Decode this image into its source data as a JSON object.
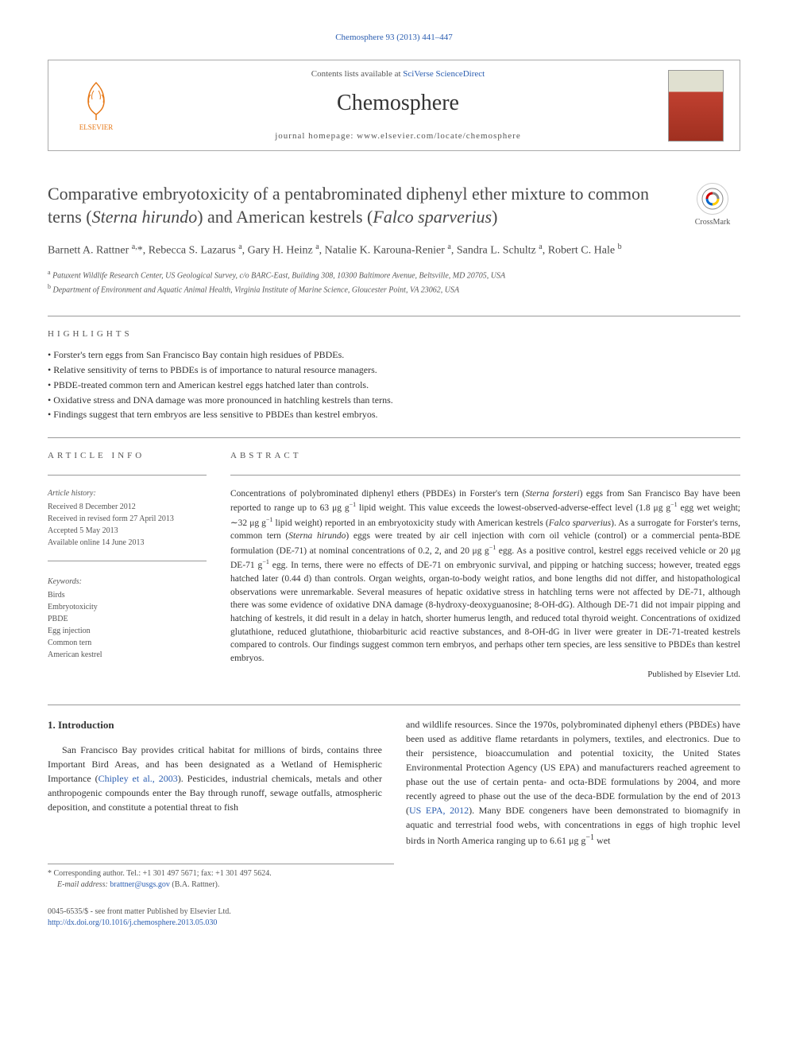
{
  "journal_ref": "Chemosphere 93 (2013) 441–447",
  "header": {
    "contents_line_prefix": "Contents lists available at ",
    "contents_link": "SciVerse ScienceDirect",
    "journal_name": "Chemosphere",
    "homepage_prefix": "journal homepage: ",
    "homepage": "www.elsevier.com/locate/chemosphere",
    "publisher": "ELSEVIER"
  },
  "crossmark": "CrossMark",
  "title_html": "Comparative embryotoxicity of a pentabrominated diphenyl ether mixture to common terns (<em>Sterna hirundo</em>) and American kestrels (<em>Falco sparverius</em>)",
  "authors_html": "Barnett A. Rattner <sup>a,</sup>*, Rebecca S. Lazarus <sup>a</sup>, Gary H. Heinz <sup>a</sup>, Natalie K. Karouna-Renier <sup>a</sup>, Sandra L. Schultz <sup>a</sup>, Robert C. Hale <sup>b</sup>",
  "affiliations": [
    {
      "sup": "a",
      "text": "Patuxent Wildlife Research Center, US Geological Survey, c/o BARC-East, Building 308, 10300 Baltimore Avenue, Beltsville, MD 20705, USA"
    },
    {
      "sup": "b",
      "text": "Department of Environment and Aquatic Animal Health, Virginia Institute of Marine Science, Gloucester Point, VA 23062, USA"
    }
  ],
  "highlights_label": "HIGHLIGHTS",
  "highlights": [
    "Forster's tern eggs from San Francisco Bay contain high residues of PBDEs.",
    "Relative sensitivity of terns to PBDEs is of importance to natural resource managers.",
    "PBDE-treated common tern and American kestrel eggs hatched later than controls.",
    "Oxidative stress and DNA damage was more pronounced in hatchling kestrels than terns.",
    "Findings suggest that tern embryos are less sensitive to PBDEs than kestrel embryos."
  ],
  "article_info_label": "ARTICLE INFO",
  "abstract_label": "ABSTRACT",
  "history_head": "Article history:",
  "history": [
    "Received 8 December 2012",
    "Received in revised form 27 April 2013",
    "Accepted 5 May 2013",
    "Available online 14 June 2013"
  ],
  "keywords_head": "Keywords:",
  "keywords": [
    "Birds",
    "Embryotoxicity",
    "PBDE",
    "Egg injection",
    "Common tern",
    "American kestrel"
  ],
  "abstract_html": "Concentrations of polybrominated diphenyl ethers (PBDEs) in Forster's tern (<em>Sterna forsteri</em>) eggs from San Francisco Bay have been reported to range up to 63 μg g<sup>−1</sup> lipid weight. This value exceeds the lowest-observed-adverse-effect level (1.8 μg g<sup>−1</sup> egg wet weight; ∼32 μg g<sup>−1</sup> lipid weight) reported in an embryotoxicity study with American kestrels (<em>Falco sparverius</em>). As a surrogate for Forster's terns, common tern (<em>Sterna hirundo</em>) eggs were treated by air cell injection with corn oil vehicle (control) or a commercial penta-BDE formulation (DE-71) at nominal concentrations of 0.2, 2, and 20 μg g<sup>−1</sup> egg. As a positive control, kestrel eggs received vehicle or 20 μg DE-71 g<sup>−1</sup> egg. In terns, there were no effects of DE-71 on embryonic survival, and pipping or hatching success; however, treated eggs hatched later (0.44 d) than controls. Organ weights, organ-to-body weight ratios, and bone lengths did not differ, and histopathological observations were unremarkable. Several measures of hepatic oxidative stress in hatchling terns were not affected by DE-71, although there was some evidence of oxidative DNA damage (8-hydroxy-deoxyguanosine; 8-OH-dG). Although DE-71 did not impair pipping and hatching of kestrels, it did result in a delay in hatch, shorter humerus length, and reduced total thyroid weight. Concentrations of oxidized glutathione, reduced glutathione, thiobarbituric acid reactive substances, and 8-OH-dG in liver were greater in DE-71-treated kestrels compared to controls. Our findings suggest common tern embryos, and perhaps other tern species, are less sensitive to PBDEs than kestrel embryos.",
  "publisher_note": "Published by Elsevier Ltd.",
  "intro_heading": "1. Introduction",
  "intro_col1_html": "San Francisco Bay provides critical habitat for millions of birds, contains three Important Bird Areas, and has been designated as a Wetland of Hemispheric Importance (<a href='#'>Chipley et al., 2003</a>). Pesticides, industrial chemicals, metals and other anthropogenic compounds enter the Bay through runoff, sewage outfalls, atmospheric deposition, and constitute a potential threat to fish",
  "intro_col2_html": "and wildlife resources. Since the 1970s, polybrominated diphenyl ethers (PBDEs) have been used as additive flame retardants in polymers, textiles, and electronics. Due to their persistence, bioaccumulation and potential toxicity, the United States Environmental Protection Agency (US EPA) and manufacturers reached agreement to phase out the use of certain penta- and octa-BDE formulations by 2004, and more recently agreed to phase out the use of the deca-BDE formulation by the end of 2013 (<a href='#'>US EPA, 2012</a>). Many BDE congeners have been demonstrated to biomagnify in aquatic and terrestrial food webs, with concentrations in eggs of high trophic level birds in North America ranging up to 6.61 μg g<sup>−1</sup> wet",
  "footnote": {
    "corr_label": "* Corresponding author. Tel.: +1 301 497 5671; fax: +1 301 497 5624.",
    "email_label": "E-mail address: ",
    "email": "brattner@usgs.gov",
    "email_suffix": " (B.A. Rattner)."
  },
  "footer": {
    "copyright": "0045-6535/$ - see front matter Published by Elsevier Ltd.",
    "doi": "http://dx.doi.org/10.1016/j.chemosphere.2013.05.030"
  },
  "colors": {
    "link": "#2a5db0",
    "elsevier_orange": "#e67817",
    "text_gray": "#555555",
    "border_gray": "#999999"
  }
}
